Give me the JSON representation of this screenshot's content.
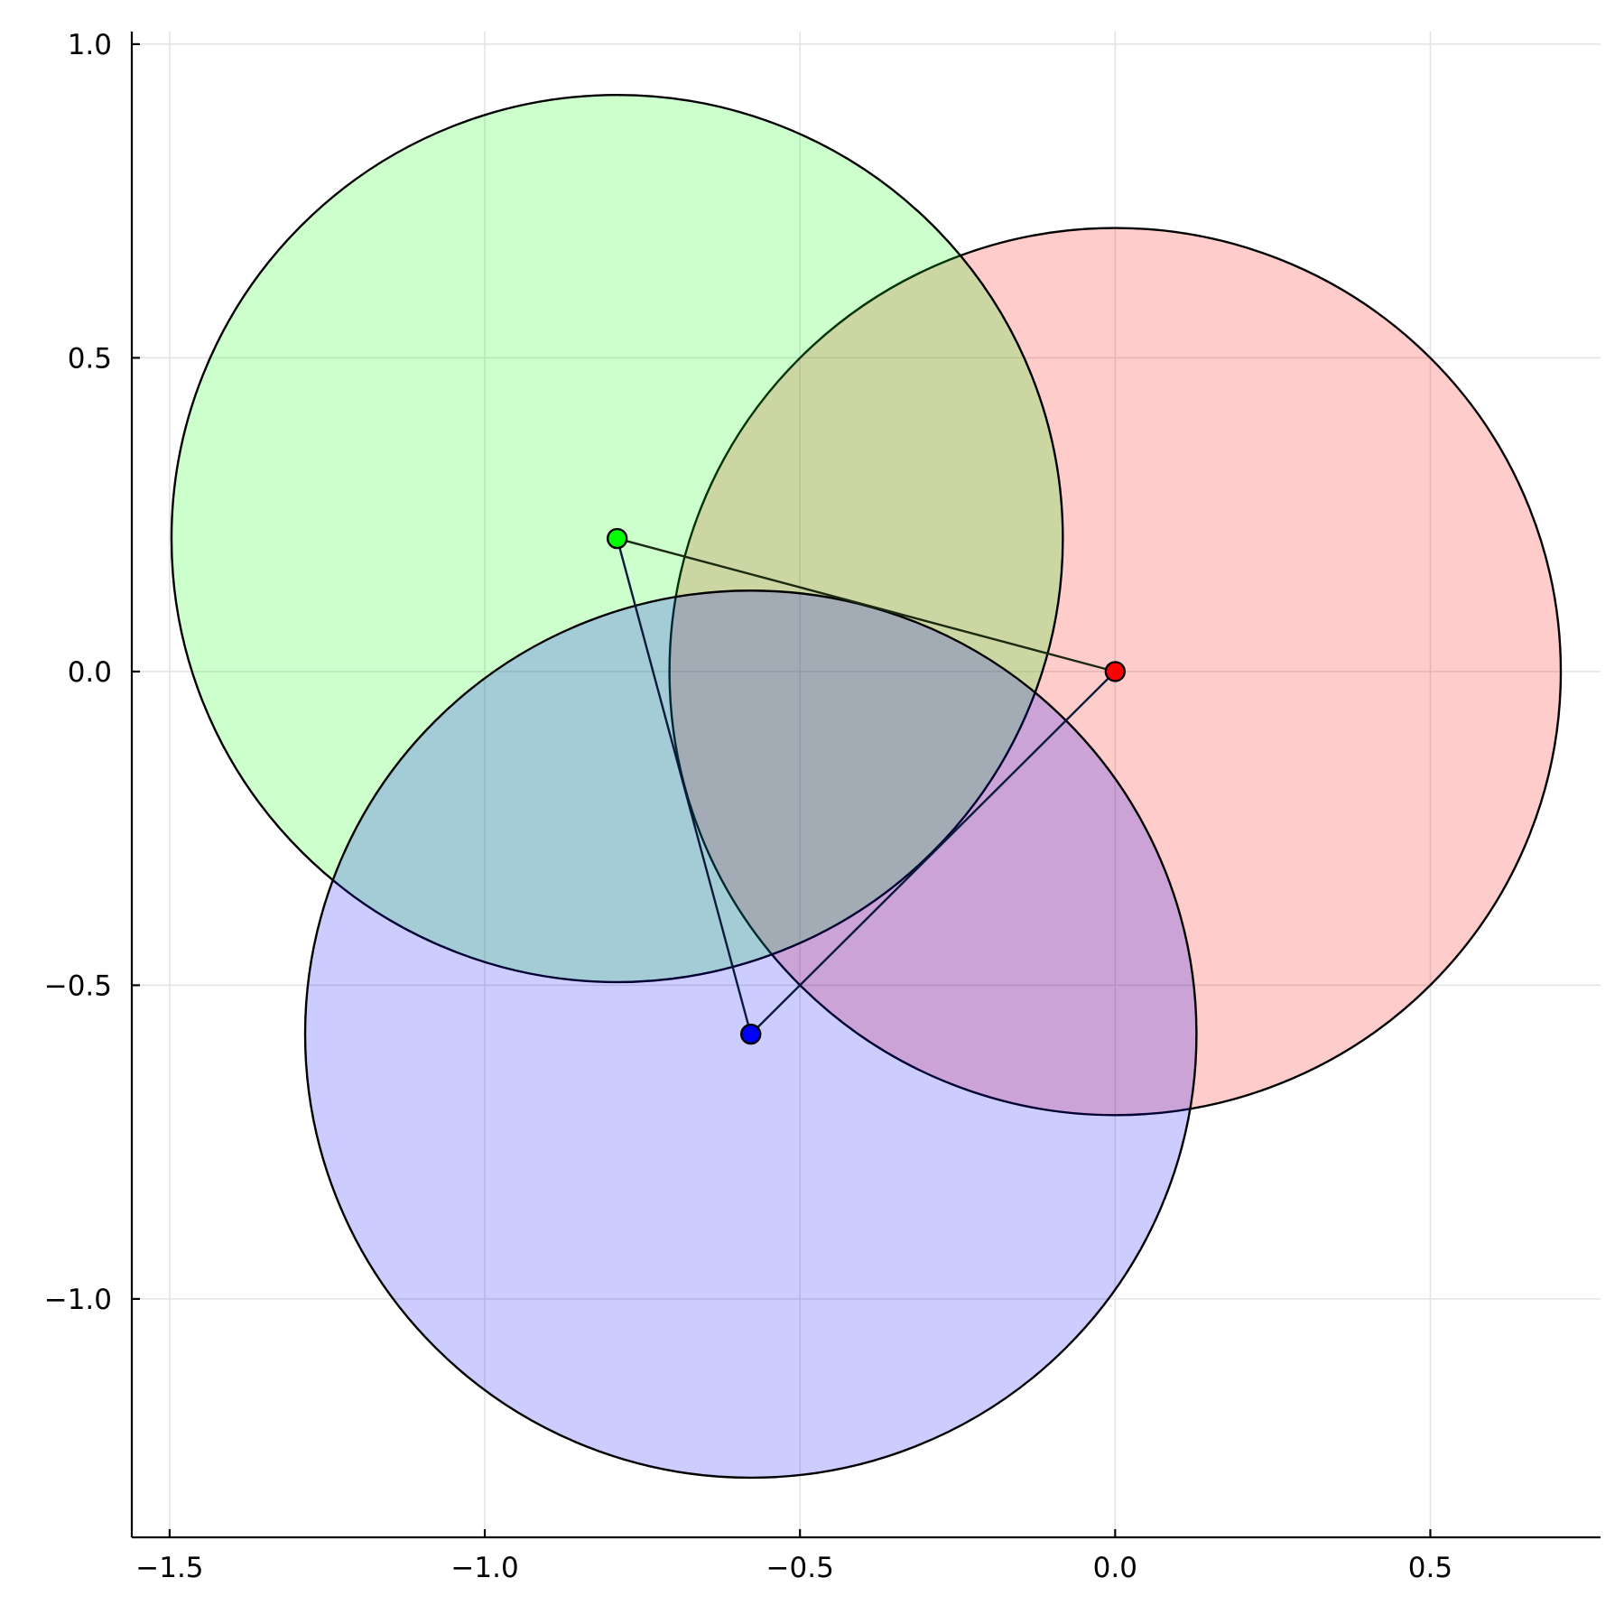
{
  "chart_data": {
    "type": "scatter",
    "title": "",
    "xlabel": "",
    "ylabel": "",
    "xlim": [
      -1.56,
      0.77
    ],
    "ylim": [
      -1.38,
      1.02
    ],
    "x_ticks": [
      -1.5,
      -1.0,
      -0.5,
      0.0,
      0.5
    ],
    "x_tick_labels": [
      "−1.5",
      "−1.0",
      "−0.5",
      "0.0",
      "0.5"
    ],
    "y_ticks": [
      -1.0,
      -0.5,
      0.0,
      0.5,
      1.0
    ],
    "y_tick_labels": [
      "−1.0",
      "−0.5",
      "0.0",
      "0.5",
      "1.0"
    ],
    "grid": true,
    "aspect": "equal",
    "circles": [
      {
        "cx": 0.0,
        "cy": 0.0,
        "r": 0.707,
        "fill": "#ff0000",
        "fill_opacity": 0.2
      },
      {
        "cx": -0.79,
        "cy": 0.212,
        "r": 0.707,
        "fill": "#00ff00",
        "fill_opacity": 0.2
      },
      {
        "cx": -0.578,
        "cy": -0.578,
        "r": 0.707,
        "fill": "#0000ff",
        "fill_opacity": 0.2
      }
    ],
    "points": [
      {
        "x": 0.0,
        "y": 0.0,
        "color": "#ff0000"
      },
      {
        "x": -0.79,
        "y": 0.212,
        "color": "#00ff00"
      },
      {
        "x": -0.578,
        "y": -0.578,
        "color": "#0000ff"
      }
    ],
    "edges": [
      {
        "x": [
          -0.79,
          0.0
        ],
        "y": [
          0.212,
          0.0
        ],
        "color": "#1a2a10"
      },
      {
        "x": [
          -0.79,
          -0.578
        ],
        "y": [
          0.212,
          -0.578
        ],
        "color": "#0a1a3a"
      },
      {
        "x": [
          0.0,
          -0.578
        ],
        "y": [
          0.0,
          -0.578
        ],
        "color": "#0a1a3a"
      }
    ]
  }
}
